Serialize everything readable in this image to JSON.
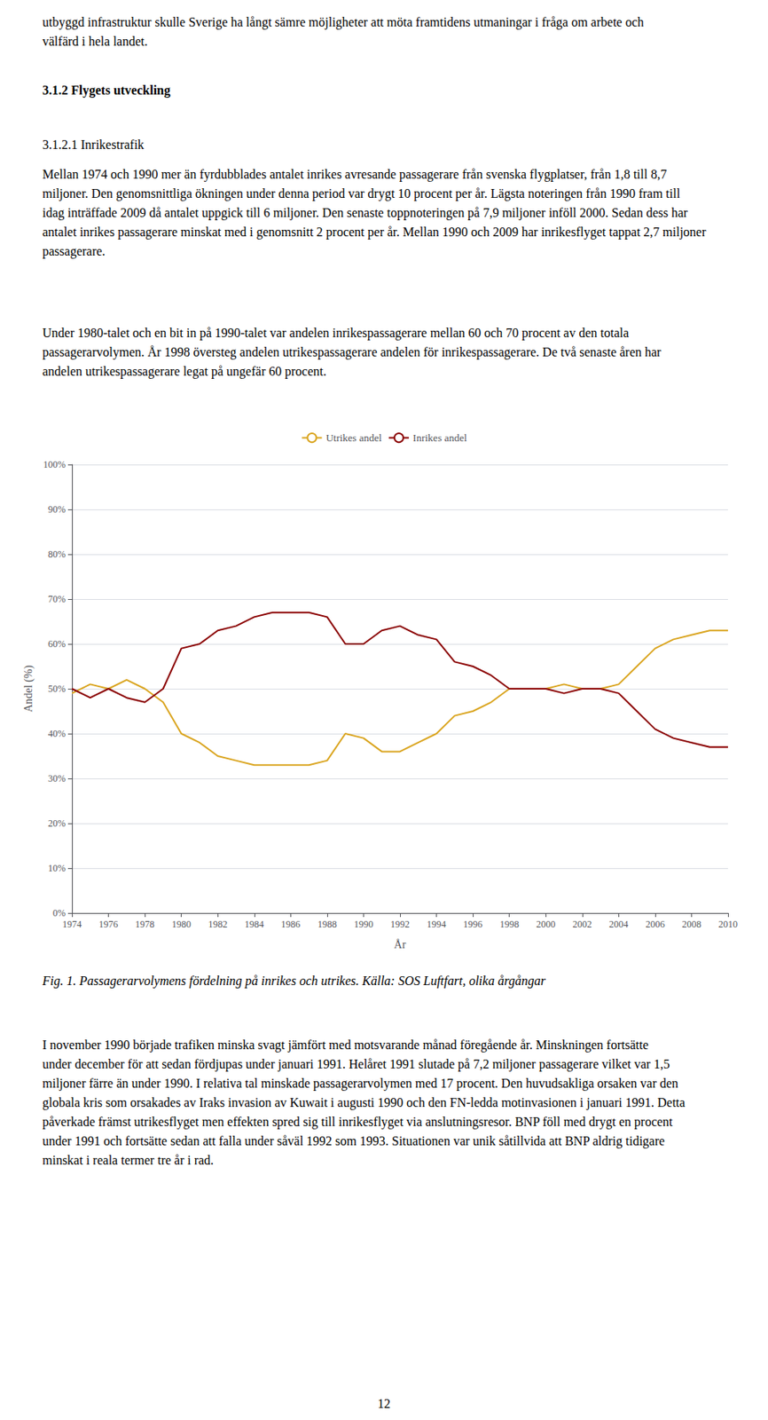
{
  "chart_data": {
    "type": "line",
    "xlabel": "År",
    "ylabel": "Andel (%)",
    "x": [
      1974,
      1975,
      1976,
      1977,
      1978,
      1979,
      1980,
      1981,
      1982,
      1983,
      1984,
      1985,
      1986,
      1987,
      1988,
      1989,
      1990,
      1991,
      1992,
      1993,
      1994,
      1995,
      1996,
      1997,
      1998,
      1999,
      2000,
      2001,
      2002,
      2003,
      2004,
      2005,
      2006,
      2007,
      2008,
      2009,
      2010
    ],
    "series": [
      {
        "name": "Utrikes andel",
        "color": "#DAA520",
        "values": [
          49,
          51,
          50,
          52,
          50,
          47,
          40,
          38,
          35,
          34,
          33,
          33,
          33,
          33,
          34,
          40,
          39,
          36,
          36,
          38,
          40,
          44,
          45,
          47,
          50,
          50,
          50,
          51,
          50,
          50,
          51,
          55,
          59,
          61,
          62,
          63,
          63
        ]
      },
      {
        "name": "Inrikes andel",
        "color": "#8B0000",
        "values": [
          50,
          48,
          50,
          48,
          47,
          50,
          59,
          60,
          63,
          64,
          66,
          67,
          67,
          67,
          66,
          60,
          60,
          63,
          64,
          62,
          61,
          56,
          55,
          53,
          50,
          50,
          50,
          49,
          50,
          50,
          49,
          45,
          41,
          39,
          38,
          37,
          37
        ]
      }
    ],
    "xlim": [
      1974,
      2010
    ],
    "xticks": [
      1974,
      1976,
      1978,
      1980,
      1982,
      1984,
      1986,
      1988,
      1990,
      1992,
      1994,
      1996,
      1998,
      2000,
      2002,
      2004,
      2006,
      2008,
      2010
    ],
    "ylim": [
      0,
      100
    ],
    "yticks": [
      {
        "value": 0,
        "label": "0%"
      },
      {
        "value": 10,
        "label": "10%"
      },
      {
        "value": 20,
        "label": "20%"
      },
      {
        "value": 30,
        "label": "30%"
      },
      {
        "value": 40,
        "label": "40%"
      },
      {
        "value": 50,
        "label": "50%"
      },
      {
        "value": 60,
        "label": "60%"
      },
      {
        "value": 70,
        "label": "70%"
      },
      {
        "value": 80,
        "label": "80%"
      },
      {
        "value": 90,
        "label": "90%"
      },
      {
        "value": 100,
        "label": "100%"
      }
    ],
    "grid": true,
    "legend": "top",
    "annotations": [
      "utbyggd infrastruktur skulle Sverige ha långt sämre möjligheter att möta framtidens utmaningar i fråga om arbete och välfärd i hela landet.",
      "3.1.2 Flygets utveckling",
      "3.1.2.1 Inrikestrafik",
      "Mellan 1974 och 1990 mer än fyrdubblades antalet inrikes avresande passagerare från svenska flygplatser, från 1,8 till 8,7 miljoner. Den genomsnittliga ökningen under denna period var drygt 10 procent per år. Lägsta noteringen från 1990 fram till idag inträffade 2009 då antalet uppgick till 6 miljoner. Den senaste toppnoteringen på 7,9 miljoner inföll 2000. Sedan dess har antalet inrikes passagerare minskat med i genomsnitt 2 procent per år. Mellan 1990 och 2009 har inrikesflyget tappat 2,7 miljoner passagerare.",
      "Under 1980-talet och en bit in på 1990-talet var andelen inrikespassagerare mellan 60 och 70 procent av den totala passagerarvolymen. År 1998 översteg andelen utrikespassagerare andelen för inrikespassagerare. De två senaste åren har andelen utrikespassagerare legat på ungefär 60 procent.",
      "Fig. 1. Passagerarvolymens fördelning på inrikes och utrikes. Källa: SOS Luftfart, olika årgångar",
      "I november 1990 började trafiken minska svagt jämfört med motsvarande månad föregående år. Minskningen fortsätte under december för att sedan fördjupas under januari 1991. Helåret 1991 slutade på 7,2 miljoner passagerare vilket var 1,5 miljoner färre än under 1990. I relativa tal minskade passagerarvolymen med 17 procent. Den huvudsakliga orsaken var den globala kris som orsakades av Iraks invasion av Kuwait i augusti 1990 och den FN-ledda motinvasionen i januari 1991. Detta påverkade främst utrikesflyget men effekten spred sig till inrikesflyget via anslutningsresor. BNP föll med drygt en procent under 1991 och fortsätte sedan att falla under såväl 1992 som 1993. Situationen var unik såtillvida att BNP aldrig tidigare minskat i reala termer tre år i rad.",
      "12"
    ]
  }
}
